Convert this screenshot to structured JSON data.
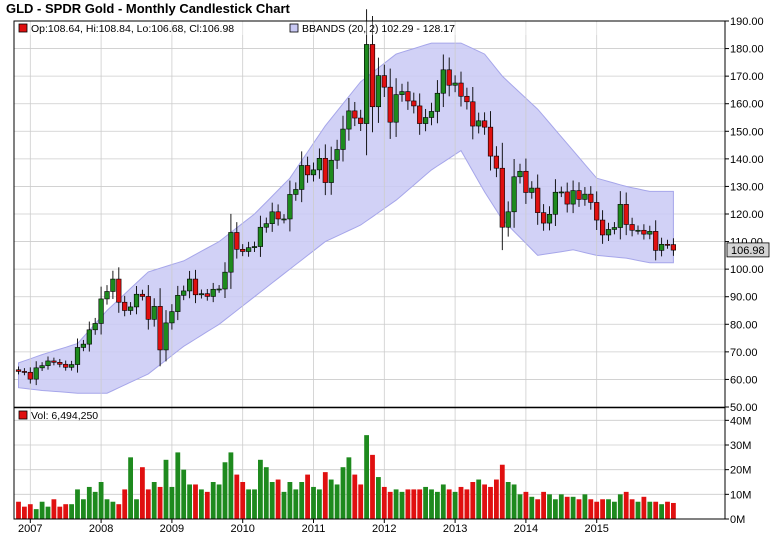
{
  "title": "GLD - SPDR Gold - Monthly Candlestick Chart",
  "colors": {
    "up": "#1e8a1e",
    "down": "#e01010",
    "band_fill": "#c9c9f4",
    "band_edge": "#a6a6ea",
    "grid": "#cccccc",
    "frame": "#000000",
    "last_price_bg": "#d4d4d4"
  },
  "chart_data": {
    "type": "candlestick",
    "price_axis": {
      "ylim": [
        50,
        190
      ],
      "ticks": [
        "50.00",
        "60.00",
        "70.00",
        "80.00",
        "90.00",
        "100.00",
        "110.00",
        "120.00",
        "130.00",
        "140.00",
        "150.00",
        "160.00",
        "170.00",
        "180.00",
        "190.00"
      ],
      "tick_values": [
        50,
        60,
        70,
        80,
        90,
        100,
        110,
        120,
        130,
        140,
        150,
        160,
        170,
        180,
        190
      ],
      "last_price": "106.98",
      "grid": true
    },
    "volume_axis": {
      "ylim": [
        0,
        45
      ],
      "unit": "millions",
      "ticks": [
        "0M",
        "10M",
        "20M",
        "30M",
        "40M"
      ],
      "tick_values": [
        0,
        10,
        20,
        30,
        40
      ]
    },
    "x_axis": {
      "start": "2006-11",
      "year_labels": [
        "2007",
        "2008",
        "2009",
        "2010",
        "2011",
        "2012",
        "2013",
        "2014",
        "2015"
      ],
      "year_tick_values": [
        2007,
        2008,
        2009,
        2010,
        2011,
        2012,
        2013,
        2014,
        2015
      ]
    },
    "legend_price": {
      "ohlc_text": "Op:108.64, Hi:108.84, Lo:106.68, Cl:106.98"
    },
    "legend_bands": {
      "text": "BBANDS (20, 2) 102.29 - 128.17"
    },
    "legend_volume": {
      "text": "Vol: 6,494,250"
    },
    "closes": [
      62.9,
      62.6,
      60.1,
      64.2,
      65.0,
      66.7,
      66.2,
      65.5,
      64.4,
      65.4,
      71.6,
      72.8,
      78.0,
      80.3,
      89.2,
      91.9,
      96.4,
      88.0,
      85.0,
      86.3,
      90.9,
      90.1,
      81.8,
      86.5,
      70.7,
      80.5,
      84.6,
      90.5,
      92.1,
      96.4,
      90.7,
      91.1,
      90.1,
      92.7,
      92.8,
      98.9,
      113.3,
      107.2,
      106.4,
      107.8,
      108.2,
      115.2,
      116.5,
      120.8,
      118.2,
      118.2,
      127.1,
      128.9,
      137.6,
      134.2,
      136.0,
      140.2,
      131.4,
      139.5,
      143.4,
      150.8,
      157.4,
      154.8,
      152.8,
      181.5,
      158.9,
      170.2,
      166.0,
      153.3,
      163.3,
      164.4,
      161.0,
      159.2,
      152.8,
      155.0,
      157.2,
      163.8,
      172.3,
      166.7,
      167.5,
      162.7,
      160.7,
      151.9,
      153.8,
      151.5,
      141.0,
      136.6,
      115.2,
      120.8,
      133.5,
      135.5,
      127.8,
      129.4,
      120.5,
      116.7,
      119.9,
      127.9,
      128.0,
      123.6,
      128.5,
      125.3,
      127.2,
      124.2,
      117.8,
      112.4,
      114.4,
      115.1,
      123.5,
      116.2,
      114.1,
      114.1,
      112.7,
      113.7,
      106.8,
      109.0,
      108.9,
      106.9
    ],
    "volume_m": [
      7,
      5,
      6,
      4,
      7,
      5,
      8,
      5,
      6,
      6,
      12,
      8,
      13,
      11,
      15,
      8,
      7,
      6,
      12,
      25,
      8,
      21,
      12,
      15,
      13,
      24,
      13,
      27,
      20,
      14,
      14,
      12,
      11,
      15,
      14,
      23,
      27,
      18,
      15,
      12,
      12,
      24,
      21,
      15,
      16,
      11,
      15,
      12,
      15,
      18,
      13,
      12,
      19,
      16,
      14,
      21,
      25,
      18,
      14,
      34,
      26,
      17,
      13,
      11,
      12,
      11,
      12,
      12,
      12,
      13,
      12,
      11,
      14,
      12,
      11,
      13,
      12,
      15,
      16,
      14,
      13,
      16,
      22,
      15,
      14,
      10,
      11,
      9,
      8,
      11,
      10,
      8,
      10,
      9,
      9,
      8,
      10,
      8,
      7,
      8,
      8,
      7,
      10,
      11,
      8,
      7,
      9,
      7,
      7,
      6,
      7,
      6.5
    ],
    "bbands": {
      "upper_key": [
        [
          "2006-11",
          66
        ],
        [
          "2007-03",
          69
        ],
        [
          "2007-09",
          73
        ],
        [
          "2008-02",
          85
        ],
        [
          "2008-09",
          99
        ],
        [
          "2009-03",
          103
        ],
        [
          "2009-09",
          110
        ],
        [
          "2010-03",
          120
        ],
        [
          "2010-09",
          133
        ],
        [
          "2011-03",
          152
        ],
        [
          "2011-09",
          168
        ],
        [
          "2012-03",
          178
        ],
        [
          "2012-09",
          182
        ],
        [
          "2013-02",
          182
        ],
        [
          "2013-06",
          178
        ],
        [
          "2013-09",
          170
        ],
        [
          "2014-03",
          158
        ],
        [
          "2014-09",
          143
        ],
        [
          "2015-01",
          133
        ],
        [
          "2015-06",
          130
        ],
        [
          "2015-10",
          128.2
        ]
      ],
      "lower_key": [
        [
          "2006-11",
          57
        ],
        [
          "2007-03",
          56
        ],
        [
          "2007-09",
          55
        ],
        [
          "2008-02",
          55
        ],
        [
          "2008-09",
          62
        ],
        [
          "2009-03",
          72
        ],
        [
          "2009-09",
          80
        ],
        [
          "2010-03",
          90
        ],
        [
          "2010-09",
          100
        ],
        [
          "2011-03",
          110
        ],
        [
          "2011-09",
          116
        ],
        [
          "2012-03",
          125
        ],
        [
          "2012-09",
          136
        ],
        [
          "2013-02",
          143
        ],
        [
          "2013-06",
          128
        ],
        [
          "2013-09",
          118
        ],
        [
          "2014-03",
          105
        ],
        [
          "2014-09",
          107
        ],
        [
          "2015-01",
          105
        ],
        [
          "2015-06",
          104
        ],
        [
          "2015-10",
          102.3
        ]
      ]
    }
  }
}
